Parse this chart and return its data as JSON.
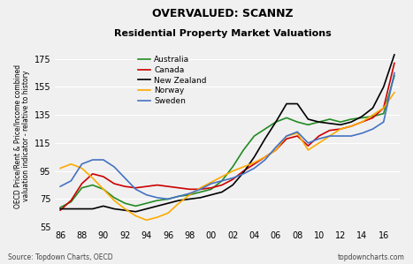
{
  "title1": "OVERVALUED: SCANNZ",
  "title2": "Residential Property Market Valuations",
  "ylabel": "OECD Price/Rent & Price/Income combined\nvaluation indicator - relative to history",
  "source_left": "Source: Topdown Charts, OECD",
  "source_right": "topdowncharts.com",
  "xlim": [
    1986,
    2017
  ],
  "ylim": [
    55,
    185
  ],
  "yticks": [
    55,
    75,
    95,
    115,
    135,
    155,
    175
  ],
  "xtick_labels": [
    "86",
    "88",
    "90",
    "92",
    "94",
    "96",
    "98",
    "00",
    "02",
    "04",
    "06",
    "08",
    "10",
    "12",
    "14",
    "16"
  ],
  "background_color": "#f0f0f0",
  "grid_color": "#ffffff",
  "series": {
    "Australia": {
      "color": "#228B22",
      "x": [
        1986,
        1987,
        1988,
        1989,
        1990,
        1991,
        1992,
        1993,
        1994,
        1995,
        1996,
        1997,
        1998,
        1999,
        2000,
        2001,
        2002,
        2003,
        2004,
        2005,
        2006,
        2007,
        2008,
        2009,
        2010,
        2011,
        2012,
        2013,
        2014,
        2015,
        2016,
        2017
      ],
      "y": [
        69,
        73,
        83,
        85,
        82,
        76,
        72,
        70,
        72,
        74,
        75,
        77,
        78,
        80,
        82,
        88,
        98,
        110,
        120,
        125,
        130,
        133,
        130,
        128,
        130,
        132,
        130,
        132,
        133,
        134,
        136,
        163
      ]
    },
    "Canada": {
      "color": "#cc0000",
      "x": [
        1986,
        1987,
        1988,
        1989,
        1990,
        1991,
        1992,
        1993,
        1994,
        1995,
        1996,
        1997,
        1998,
        1999,
        2000,
        2001,
        2002,
        2003,
        2004,
        2005,
        2006,
        2007,
        2008,
        2009,
        2010,
        2011,
        2012,
        2013,
        2014,
        2015,
        2016,
        2017
      ],
      "y": [
        67,
        74,
        86,
        93,
        91,
        86,
        84,
        83,
        84,
        85,
        84,
        83,
        82,
        82,
        83,
        85,
        89,
        95,
        100,
        105,
        110,
        118,
        120,
        113,
        120,
        124,
        125,
        127,
        130,
        133,
        140,
        172
      ]
    },
    "New Zealand": {
      "color": "#000000",
      "x": [
        1986,
        1987,
        1988,
        1989,
        1990,
        1991,
        1992,
        1993,
        1994,
        1995,
        1996,
        1997,
        1998,
        1999,
        2000,
        2001,
        2002,
        2003,
        2004,
        2005,
        2006,
        2007,
        2008,
        2009,
        2010,
        2011,
        2012,
        2013,
        2014,
        2015,
        2016,
        2017
      ],
      "y": [
        68,
        68,
        68,
        68,
        70,
        68,
        67,
        66,
        68,
        70,
        72,
        74,
        75,
        76,
        78,
        80,
        85,
        94,
        105,
        118,
        130,
        143,
        143,
        132,
        130,
        129,
        128,
        130,
        134,
        140,
        155,
        178
      ]
    },
    "Norway": {
      "color": "#ffaa00",
      "x": [
        1986,
        1987,
        1988,
        1989,
        1990,
        1991,
        1992,
        1993,
        1994,
        1995,
        1996,
        1997,
        1998,
        1999,
        2000,
        2001,
        2002,
        2003,
        2004,
        2005,
        2006,
        2007,
        2008,
        2009,
        2010,
        2011,
        2012,
        2013,
        2014,
        2015,
        2016,
        2017
      ],
      "y": [
        97,
        100,
        97,
        90,
        82,
        74,
        68,
        63,
        60,
        62,
        65,
        72,
        78,
        83,
        87,
        91,
        95,
        98,
        101,
        105,
        110,
        120,
        122,
        110,
        115,
        120,
        125,
        127,
        130,
        135,
        140,
        151
      ]
    },
    "Sweden": {
      "color": "#4472c4",
      "x": [
        1986,
        1987,
        1988,
        1989,
        1990,
        1991,
        1992,
        1993,
        1994,
        1995,
        1996,
        1997,
        1998,
        1999,
        2000,
        2001,
        2002,
        2003,
        2004,
        2005,
        2006,
        2007,
        2008,
        2009,
        2010,
        2011,
        2012,
        2013,
        2014,
        2015,
        2016,
        2017
      ],
      "y": [
        84,
        88,
        100,
        103,
        103,
        98,
        90,
        82,
        78,
        76,
        75,
        77,
        79,
        82,
        86,
        88,
        90,
        93,
        97,
        103,
        112,
        120,
        123,
        115,
        118,
        120,
        120,
        120,
        122,
        125,
        130,
        165
      ]
    }
  }
}
